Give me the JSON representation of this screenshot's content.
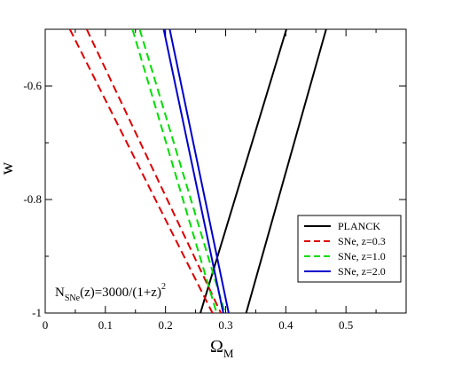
{
  "chart_data": {
    "type": "line",
    "xlabel": "Ω",
    "xlabel_sub": "M",
    "ylabel": "w",
    "xlim": [
      0,
      0.6
    ],
    "ylim": [
      -1,
      -0.5
    ],
    "xticks": [
      {
        "v": 0,
        "label": "0"
      },
      {
        "v": 0.1,
        "label": "0.1"
      },
      {
        "v": 0.2,
        "label": "0.2"
      },
      {
        "v": 0.3,
        "label": "0.3"
      },
      {
        "v": 0.4,
        "label": "0.4"
      },
      {
        "v": 0.5,
        "label": "0.5"
      }
    ],
    "yticks": [
      {
        "v": -1,
        "label": "-1"
      },
      {
        "v": -0.8,
        "label": "-0.8"
      },
      {
        "v": -0.6,
        "label": "-0.6"
      }
    ],
    "grid": false,
    "legend_position": "bottom-right",
    "annotation": {
      "prefix": "N",
      "sub": "SNe",
      "mid": "(z)=3000/(1+z)",
      "sup": "2"
    },
    "series": [
      {
        "name": "PLANCK",
        "color": "#000000",
        "dash": "solid",
        "lines": [
          [
            {
              "x": 0.258,
              "y": -1.0
            },
            {
              "x": 0.401,
              "y": -0.5
            }
          ],
          [
            {
              "x": 0.334,
              "y": -1.0
            },
            {
              "x": 0.467,
              "y": -0.5
            }
          ]
        ]
      },
      {
        "name": "SNe, z=0.3",
        "color": "#dd0000",
        "dash": "dashed",
        "lines": [
          [
            {
              "x": 0.041,
              "y": -0.5
            },
            {
              "x": 0.278,
              "y": -1.0
            }
          ],
          [
            {
              "x": 0.069,
              "y": -0.5
            },
            {
              "x": 0.292,
              "y": -1.0
            }
          ]
        ]
      },
      {
        "name": "SNe, z=1.0",
        "color": "#00dd00",
        "dash": "dashed",
        "lines": [
          [
            {
              "x": 0.145,
              "y": -0.5
            },
            {
              "x": 0.285,
              "y": -1.0
            }
          ],
          [
            {
              "x": 0.157,
              "y": -0.5
            },
            {
              "x": 0.299,
              "y": -1.0
            }
          ]
        ]
      },
      {
        "name": "SNe, z=2.0",
        "color": "#0000cc",
        "dash": "solid",
        "lines": [
          [
            {
              "x": 0.197,
              "y": -0.5
            },
            {
              "x": 0.296,
              "y": -1.0
            }
          ],
          [
            {
              "x": 0.207,
              "y": -0.5
            },
            {
              "x": 0.305,
              "y": -1.0
            }
          ]
        ]
      }
    ]
  }
}
